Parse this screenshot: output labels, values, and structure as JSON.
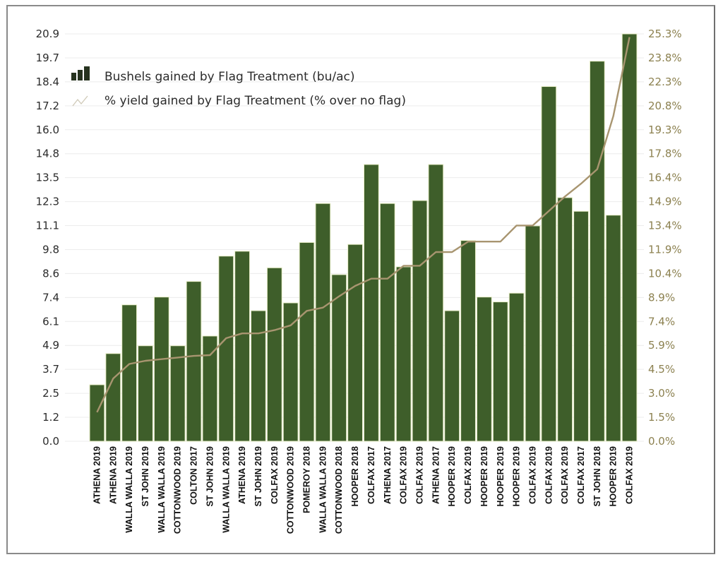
{
  "chart_data": {
    "type": "bar",
    "title": "",
    "xlabel": "",
    "ylabel": "",
    "ylabel_right": "",
    "grid": true,
    "legend_position": "top-left",
    "colors": {
      "bar": "#3e5e2a",
      "bar_edge": "#e9efc9",
      "line": "#a89570",
      "left_ticks": "#2b2b2b",
      "right_ticks": "#8c8150",
      "grid": "#ececec"
    },
    "ylim": [
      0,
      20.9
    ],
    "ylim_right": [
      0,
      25.3
    ],
    "yticks_left": [
      "0.0",
      "1.2",
      "2.5",
      "3.7",
      "4.9",
      "6.1",
      "7.4",
      "8.6",
      "9.8",
      "11.1",
      "12.3",
      "13.5",
      "14.8",
      "16.0",
      "17.2",
      "18.4",
      "19.7",
      "20.9"
    ],
    "yticks_right": [
      "0.0%",
      "1.5%",
      "3.0%",
      "4.5%",
      "5.9%",
      "7.4%",
      "8.9%",
      "10.4%",
      "11.9%",
      "13.4%",
      "14.9%",
      "16.4%",
      "17.8%",
      "19.3%",
      "20.8%",
      "22.3%",
      "23.8%",
      "25.3%"
    ],
    "categories": [
      "ATHENA 2019",
      "ATHENA 2019",
      "WALLA WALLA 2019",
      "ST JOHN 2019",
      "WALLA WALLA 2019",
      "COTTONWOOD 2019",
      "COLTON 2017",
      "ST JOHN 2019",
      "WALLA WALLA 2019",
      "ATHENA 2019",
      "ST JOHN 2019",
      "COLFAX 2019",
      "COTTONWOOD 2019",
      "POMEROY 2018",
      "WALLA WALLA 2019",
      "COTTONWOOD 2018",
      "HOOPER 2018",
      "COLFAX 2017",
      "ATHENA 2017",
      "COLFAX 2019",
      "COLFAX 2019",
      "ATHENA 2017",
      "HOOPER 2019",
      "COLFAX 2019",
      "HOOPER 2019",
      "HOOPER 2019",
      "HOOPER 2019",
      "COLFAX 2019",
      "COLFAX 2019",
      "COLFAX 2019",
      "COLFAX 2017",
      "ST JOHN 2018",
      "HOOPER 2019",
      "COLFAX 2019"
    ],
    "series": [
      {
        "name": "Bushels gained by Flag Treatment (bu/ac)",
        "type": "bar",
        "axis": "left",
        "values": [
          2.9,
          4.5,
          7.0,
          4.9,
          7.4,
          4.9,
          8.2,
          5.4,
          9.5,
          9.75,
          6.7,
          8.9,
          7.1,
          10.2,
          12.2,
          8.55,
          10.1,
          14.2,
          12.2,
          8.95,
          12.35,
          14.2,
          6.7,
          10.3,
          7.4,
          7.15,
          7.6,
          11.05,
          18.2,
          12.5,
          11.8,
          19.5,
          11.6,
          20.9
        ]
      },
      {
        "name": "% yield gained by Flag Treatment (% over no flag)",
        "type": "line",
        "axis": "right",
        "values": [
          1.8,
          3.9,
          4.8,
          5.0,
          5.1,
          5.2,
          5.3,
          5.35,
          6.4,
          6.7,
          6.7,
          6.9,
          7.2,
          8.1,
          8.3,
          9.0,
          9.65,
          10.1,
          10.1,
          10.9,
          10.9,
          11.75,
          11.75,
          12.4,
          12.4,
          12.4,
          13.4,
          13.4,
          14.3,
          15.2,
          16.0,
          16.9,
          20.2,
          25.1
        ]
      }
    ]
  },
  "legend": {
    "bar_label": "Bushels gained by Flag Treatment (bu/ac)",
    "line_label": "% yield gained by Flag Treatment (% over no flag)",
    "bar_icon": "bar-chart-icon",
    "line_icon": "line-chart-icon"
  }
}
